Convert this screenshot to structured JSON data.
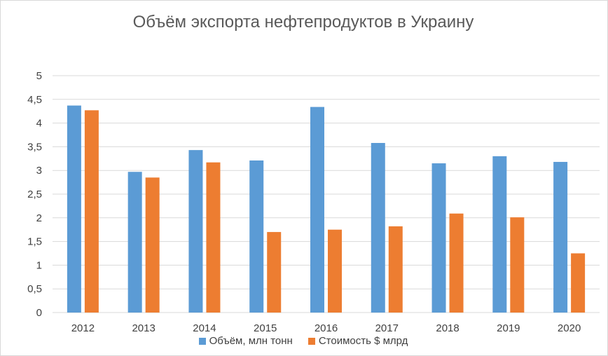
{
  "chart_data": {
    "type": "bar",
    "title": "Объём экспорта нефтепродуктов в Украину",
    "categories": [
      "2012",
      "2013",
      "2014",
      "2015",
      "2016",
      "2017",
      "2018",
      "2019",
      "2020"
    ],
    "series": [
      {
        "name": "Объём, млн тонн",
        "color": "#5b9bd5",
        "values": [
          4.37,
          2.97,
          3.43,
          3.21,
          4.34,
          3.58,
          3.15,
          3.3,
          3.18
        ]
      },
      {
        "name": "Стоимость $ млрд",
        "color": "#ed7d31",
        "values": [
          4.27,
          2.85,
          3.17,
          1.7,
          1.75,
          1.82,
          2.09,
          2.01,
          1.25
        ]
      }
    ],
    "ylim": [
      0,
      5
    ],
    "yticks": [
      "0",
      "0,5",
      "1",
      "1,5",
      "2",
      "2,5",
      "3",
      "3,5",
      "4",
      "4,5",
      "5"
    ],
    "grid": true,
    "legend_position": "bottom"
  }
}
